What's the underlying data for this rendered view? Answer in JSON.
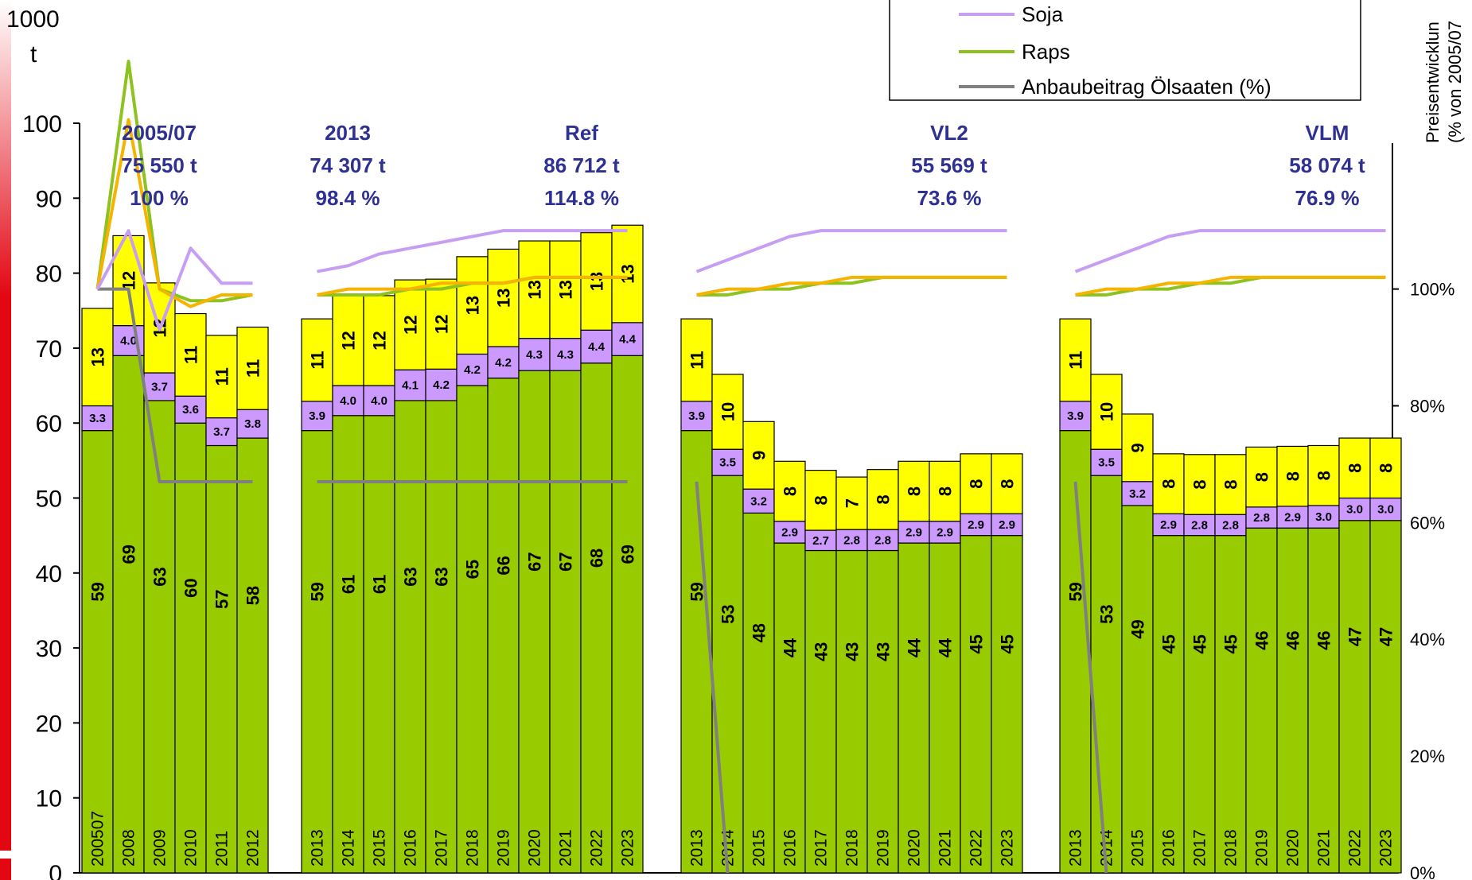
{
  "chart_data": {
    "type": "bar",
    "stacked": true,
    "y_axis_unit_top": "1000",
    "y_axis_unit_bottom": "t",
    "y_ticks": [
      "0",
      "10",
      "20",
      "30",
      "40",
      "50",
      "60",
      "70",
      "80",
      "90",
      "100"
    ],
    "ylim": [
      0,
      100
    ],
    "y2_label_line1": "Preisentwicklun",
    "y2_label_line2": "(% von 2005/07",
    "y2_ticks": [
      "0%",
      "20%",
      "40%",
      "60%",
      "80%",
      "100%"
    ],
    "y2lim": [
      0,
      1.25
    ],
    "grid": false,
    "legend_position": "top-right",
    "legend": [
      {
        "name": "Soja",
        "color": "#c79ff2"
      },
      {
        "name": "Raps",
        "color": "#8dc21f"
      },
      {
        "name": "Anbaubeitrag Ölsaaten (%)",
        "color": "#808080"
      }
    ],
    "stack_colors": [
      "#99cc00",
      "#cc99ff",
      "#ffff00"
    ],
    "groups": [
      {
        "title": "2005/07",
        "total": "75 550 t",
        "percent": "100 %",
        "years": [
          "200507",
          "2008",
          "2009",
          "2010",
          "2011",
          "2012"
        ],
        "green": [
          59,
          69,
          63,
          60,
          57,
          58
        ],
        "purple": [
          3.3,
          4.0,
          3.7,
          3.6,
          3.7,
          3.8
        ],
        "yellow": [
          13,
          12,
          12,
          11,
          11,
          11
        ],
        "green_labels": [
          "59",
          "69",
          "63",
          "60",
          "57",
          "58"
        ],
        "purple_labels": [
          "3.3",
          "4.0",
          "3.7",
          "3.6",
          "3.7",
          "3.8"
        ],
        "yellow_labels": [
          "13",
          "12",
          "12",
          "11",
          "11",
          "11"
        ],
        "line_soja": [
          1.0,
          1.1,
          0.93,
          1.07,
          1.01,
          1.01
        ],
        "line_raps": [
          1.0,
          1.39,
          1.0,
          0.98,
          0.98,
          0.99
        ],
        "line_orange": [
          1.0,
          1.29,
          1.0,
          0.97,
          0.99,
          0.99
        ],
        "line_gray": [
          1.0,
          1.0,
          0.67,
          0.67,
          0.67,
          0.67
        ]
      },
      {
        "title": "2013",
        "total": "74 307 t",
        "percent": "98.4 %",
        "years": [
          "2013"
        ],
        "green": [
          59
        ],
        "purple": [
          3.9
        ],
        "yellow": [
          11
        ],
        "green_labels": [
          "59"
        ],
        "purple_labels": [
          "3.9"
        ],
        "yellow_labels": [
          "11"
        ],
        "title2": "Ref",
        "total2": "86 712 t",
        "percent2": "114.8 %",
        "years2": [
          "2014",
          "2015",
          "2016",
          "2017",
          "2018",
          "2019",
          "2020",
          "2021",
          "2022",
          "2023"
        ],
        "green2": [
          61,
          61,
          63,
          63,
          65,
          66,
          67,
          67,
          68,
          69
        ],
        "purple2": [
          4.0,
          4.0,
          4.1,
          4.2,
          4.2,
          4.2,
          4.3,
          4.3,
          4.4,
          4.4
        ],
        "yellow2": [
          12,
          12,
          12,
          12,
          13,
          13,
          13,
          13,
          13,
          13
        ],
        "green_labels2": [
          "61",
          "61",
          "63",
          "63",
          "65",
          "66",
          "67",
          "67",
          "68",
          "69"
        ],
        "purple_labels2": [
          "4.0",
          "4.0",
          "4.1",
          "4.2",
          "4.2",
          "4.2",
          "4.3",
          "4.3",
          "4.4",
          "4.4"
        ],
        "yellow_labels2": [
          "12",
          "12",
          "12",
          "12",
          "13",
          "13",
          "13",
          "13",
          "13",
          "13"
        ],
        "line_soja": [
          1.03,
          1.04,
          1.06,
          1.07,
          1.08,
          1.09,
          1.1,
          1.1,
          1.1,
          1.1,
          1.1
        ],
        "line_raps": [
          0.99,
          0.99,
          0.99,
          1.0,
          1.0,
          1.01,
          1.01,
          1.02,
          1.02,
          1.02,
          1.02
        ],
        "line_orange": [
          0.99,
          1.0,
          1.0,
          1.0,
          1.01,
          1.01,
          1.01,
          1.02,
          1.02,
          1.02,
          1.02
        ],
        "line_gray": [
          0.67,
          0.67,
          0.67,
          0.67,
          0.67,
          0.67,
          0.67,
          0.67,
          0.67,
          0.67,
          0.67
        ]
      },
      {
        "title": "VL2",
        "total": "55 569 t",
        "percent": "73.6 %",
        "years": [
          "2013",
          "2014",
          "2015",
          "2016",
          "2017",
          "2018",
          "2019",
          "2020",
          "2021",
          "2022",
          "2023"
        ],
        "green": [
          59,
          53,
          48,
          44,
          43,
          43,
          43,
          44,
          44,
          45,
          45
        ],
        "purple": [
          3.9,
          3.5,
          3.2,
          2.9,
          2.7,
          2.8,
          2.8,
          2.9,
          2.9,
          2.9,
          2.9
        ],
        "yellow": [
          11,
          10,
          9,
          8,
          8,
          7,
          8,
          8,
          8,
          8,
          8
        ],
        "green_labels": [
          "59",
          "53",
          "48",
          "44",
          "43",
          "43",
          "43",
          "44",
          "44",
          "45",
          "45"
        ],
        "purple_labels": [
          "3.9",
          "3.5",
          "3.2",
          "2.9",
          "2.7",
          "2.8",
          "2.8",
          "2.9",
          "2.9",
          "2.9",
          "2.9"
        ],
        "yellow_labels": [
          "11",
          "10",
          "9",
          "8",
          "8",
          "7",
          "8",
          "8",
          "8",
          "8",
          "8"
        ],
        "line_soja": [
          1.03,
          1.05,
          1.07,
          1.09,
          1.1,
          1.1,
          1.1,
          1.1,
          1.1,
          1.1,
          1.1
        ],
        "line_raps": [
          0.99,
          0.99,
          1.0,
          1.0,
          1.01,
          1.01,
          1.02,
          1.02,
          1.02,
          1.02,
          1.02
        ],
        "line_orange": [
          0.99,
          1.0,
          1.0,
          1.01,
          1.01,
          1.02,
          1.02,
          1.02,
          1.02,
          1.02,
          1.02
        ],
        "line_gray": [
          0.67,
          0.0
        ]
      },
      {
        "title": "VLM",
        "total": "58 074 t",
        "percent": "76.9 %",
        "years": [
          "2013",
          "2014",
          "2015",
          "2016",
          "2017",
          "2018",
          "2019",
          "2020",
          "2021",
          "2022",
          "2023"
        ],
        "green": [
          59,
          53,
          49,
          45,
          45,
          45,
          46,
          46,
          46,
          47,
          47
        ],
        "purple": [
          3.9,
          3.5,
          3.2,
          2.9,
          2.8,
          2.8,
          2.8,
          2.9,
          3.0,
          3.0,
          3.0
        ],
        "yellow": [
          11,
          10,
          9,
          8,
          8,
          8,
          8,
          8,
          8,
          8,
          8
        ],
        "green_labels": [
          "59",
          "53",
          "49",
          "45",
          "45",
          "45",
          "46",
          "46",
          "46",
          "47",
          "47"
        ],
        "purple_labels": [
          "3.9",
          "3.5",
          "3.2",
          "2.9",
          "2.8",
          "2.8",
          "2.8",
          "2.9",
          "3.0",
          "3.0",
          "3.0"
        ],
        "yellow_labels": [
          "11",
          "10",
          "9",
          "8",
          "8",
          "8",
          "8",
          "8",
          "8",
          "8",
          "8"
        ],
        "line_soja": [
          1.03,
          1.05,
          1.07,
          1.09,
          1.1,
          1.1,
          1.1,
          1.1,
          1.1,
          1.1,
          1.1
        ],
        "line_raps": [
          0.99,
          0.99,
          1.0,
          1.0,
          1.01,
          1.01,
          1.02,
          1.02,
          1.02,
          1.02,
          1.02
        ],
        "line_orange": [
          0.99,
          1.0,
          1.0,
          1.01,
          1.01,
          1.02,
          1.02,
          1.02,
          1.02,
          1.02,
          1.02
        ],
        "line_gray": [
          0.67,
          0.0
        ]
      }
    ]
  }
}
